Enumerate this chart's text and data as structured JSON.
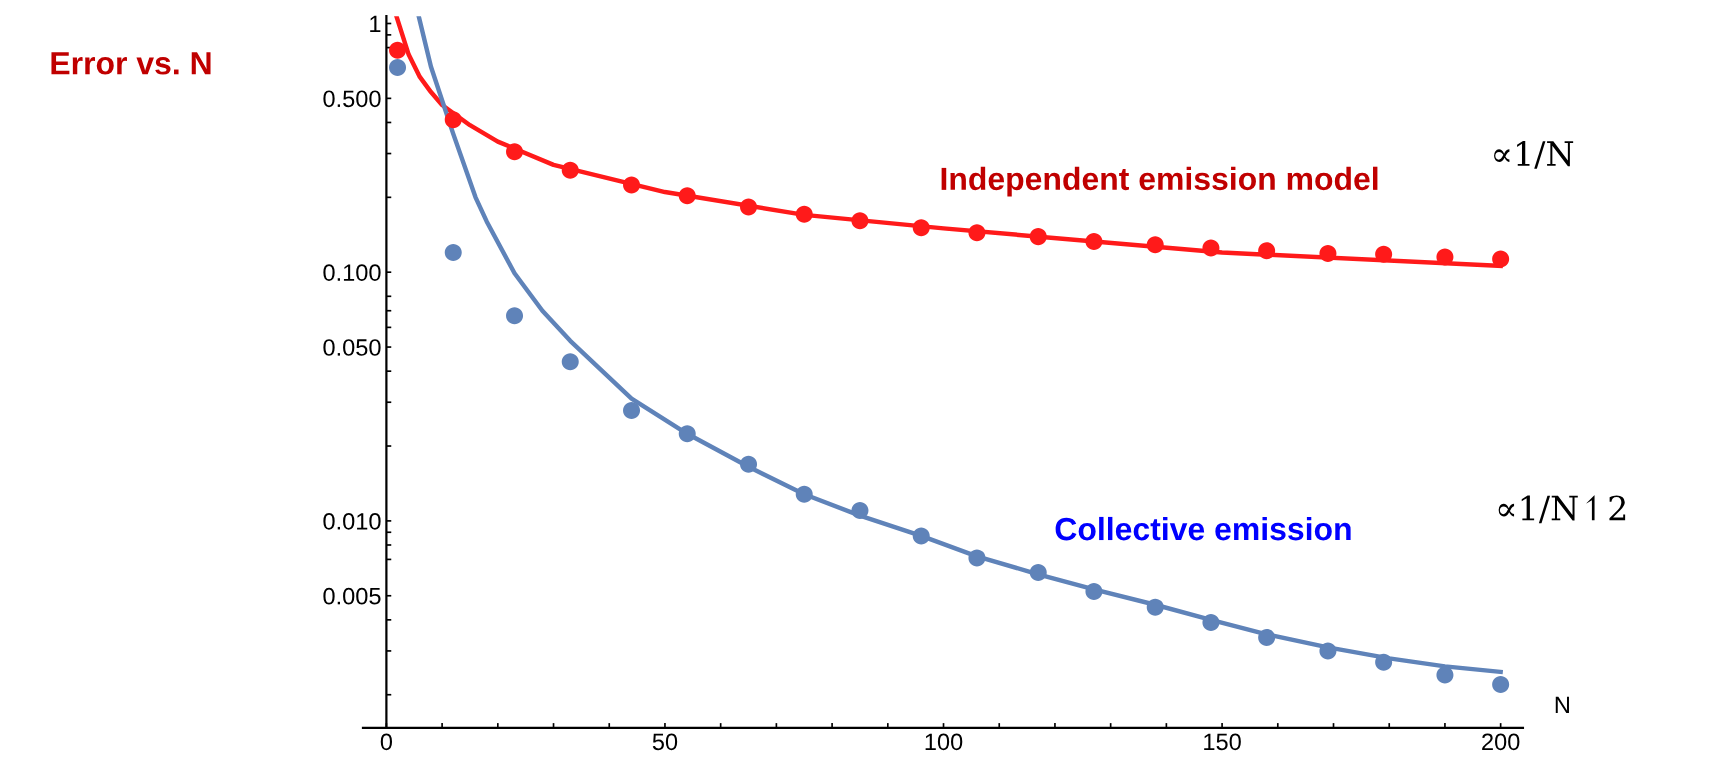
{
  "chart_data": {
    "type": "line",
    "ylabel": "Error vs. N",
    "xlabel": "N",
    "log": "y",
    "grid": false,
    "legend": false,
    "xlim": [
      -4.2,
      204
    ],
    "ylim": [
      0.00147,
      1.07
    ],
    "xticks": [
      0,
      {
        "value": 10,
        "label": null
      },
      {
        "value": 20,
        "label": null
      },
      {
        "value": 30,
        "label": null
      },
      {
        "value": 40,
        "label": null
      },
      50,
      {
        "value": 60,
        "label": null
      },
      {
        "value": 70,
        "label": null
      },
      {
        "value": 80,
        "label": null
      },
      {
        "value": 90,
        "label": null
      },
      100,
      {
        "value": 110,
        "label": null
      },
      {
        "value": 120,
        "label": null
      },
      {
        "value": 130,
        "label": null
      },
      {
        "value": 140,
        "label": null
      },
      150,
      {
        "value": 160,
        "label": null
      },
      {
        "value": 170,
        "label": null
      },
      {
        "value": 180,
        "label": null
      },
      {
        "value": 190,
        "label": null
      },
      200
    ],
    "yticks": [
      {
        "value": 0.002,
        "label": null
      },
      {
        "value": 0.003,
        "label": null
      },
      {
        "value": 0.004,
        "label": null
      },
      {
        "value": 0.005,
        "label": "0.005"
      },
      {
        "value": 0.007,
        "label": null
      },
      {
        "value": 0.008,
        "label": null
      },
      {
        "value": 0.009,
        "label": null
      },
      {
        "value": 0.01,
        "label": "0.010"
      },
      {
        "value": 0.02,
        "label": null
      },
      {
        "value": 0.03,
        "label": null
      },
      {
        "value": 0.04,
        "label": null
      },
      {
        "value": 0.05,
        "label": "0.050"
      },
      {
        "value": 0.06,
        "label": null
      },
      {
        "value": 0.07,
        "label": null
      },
      {
        "value": 0.08,
        "label": null
      },
      {
        "value": 0.1,
        "label": "0.100"
      },
      {
        "value": 0.2,
        "label": null
      },
      {
        "value": 0.3,
        "label": null
      },
      {
        "value": 0.4,
        "label": null
      },
      {
        "value": 0.5,
        "label": "0.500"
      },
      {
        "value": 0.8,
        "label": null
      },
      {
        "value": 0.9,
        "label": null
      },
      1
    ],
    "annotations": [
      "∝1/N",
      "∝1/N↿2"
    ],
    "series": [
      {
        "name": "Independent emission model",
        "color": "#ff1a1a",
        "marker": "none",
        "line_style": "solid",
        "x": [
          1.8,
          4,
          6,
          8,
          10,
          15,
          20,
          30,
          50,
          75,
          100,
          150,
          200
        ],
        "values": [
          1.07,
          0.75,
          0.61,
          0.53,
          0.47,
          0.39,
          0.335,
          0.27,
          0.21,
          0.17,
          0.15,
          0.12,
          0.106
        ]
      },
      {
        "type": "scatter",
        "color": "#ff1a1a",
        "marker": "circle",
        "x": [
          2,
          12,
          23,
          33,
          44,
          54,
          65,
          75,
          85,
          96,
          106,
          117,
          127,
          138,
          148,
          158,
          169,
          179,
          190,
          200
        ],
        "values": [
          0.78,
          0.41,
          0.305,
          0.257,
          0.224,
          0.203,
          0.183,
          0.171,
          0.161,
          0.151,
          0.144,
          0.139,
          0.133,
          0.129,
          0.125,
          0.122,
          0.119,
          0.118,
          0.115,
          0.113
        ]
      },
      {
        "name": "Collective emission",
        "color": "#5f83b9",
        "marker": "none",
        "line_style": "solid",
        "x": [
          5.8,
          8,
          12,
          16,
          18,
          23,
          28,
          33,
          44,
          54,
          65,
          75,
          85,
          96,
          106,
          117,
          127,
          138,
          148,
          158,
          169,
          180,
          190,
          200
        ],
        "values": [
          1.07,
          0.67,
          0.36,
          0.2,
          0.16,
          0.099,
          0.07,
          0.053,
          0.031,
          0.0224,
          0.0165,
          0.0128,
          0.0105,
          0.0087,
          0.0072,
          0.0061,
          0.0053,
          0.0046,
          0.004,
          0.0035,
          0.0031,
          0.0028,
          0.0026,
          0.00247
        ]
      },
      {
        "type": "scatter",
        "color": "#5f83b9",
        "marker": "circle",
        "x": [
          2,
          12,
          23,
          33,
          44,
          54,
          65,
          75,
          85,
          96,
          106,
          117,
          127,
          138,
          148,
          158,
          169,
          179,
          190,
          200
        ],
        "values": [
          0.665,
          0.12,
          0.0668,
          0.0436,
          0.0278,
          0.0224,
          0.0169,
          0.0128,
          0.011,
          0.0087,
          0.0071,
          0.0062,
          0.0052,
          0.0045,
          0.0039,
          0.0034,
          0.003,
          0.0027,
          0.0024,
          0.0022
        ]
      }
    ]
  }
}
